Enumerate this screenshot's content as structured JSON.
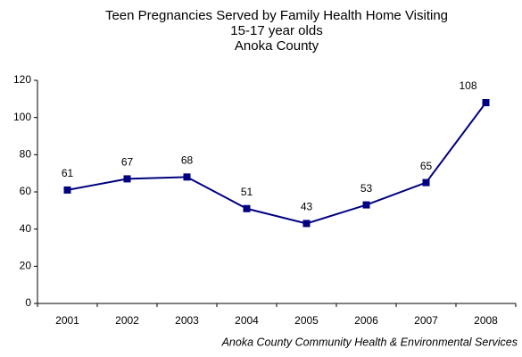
{
  "chart_data": {
    "type": "line",
    "title": "Teen Pregnancies Served by Family Health Home Visiting",
    "subtitle": [
      "15-17 year olds",
      "Anoka County"
    ],
    "categories": [
      "2001",
      "2002",
      "2003",
      "2004",
      "2005",
      "2006",
      "2007",
      "2008"
    ],
    "values": [
      61,
      67,
      68,
      51,
      43,
      53,
      65,
      108
    ],
    "color": "#000080",
    "ylim": [
      0,
      120
    ],
    "yticks": [
      0,
      20,
      40,
      60,
      80,
      100,
      120
    ],
    "grid": false,
    "source": "Anoka County Community Health & Environmental Services"
  }
}
